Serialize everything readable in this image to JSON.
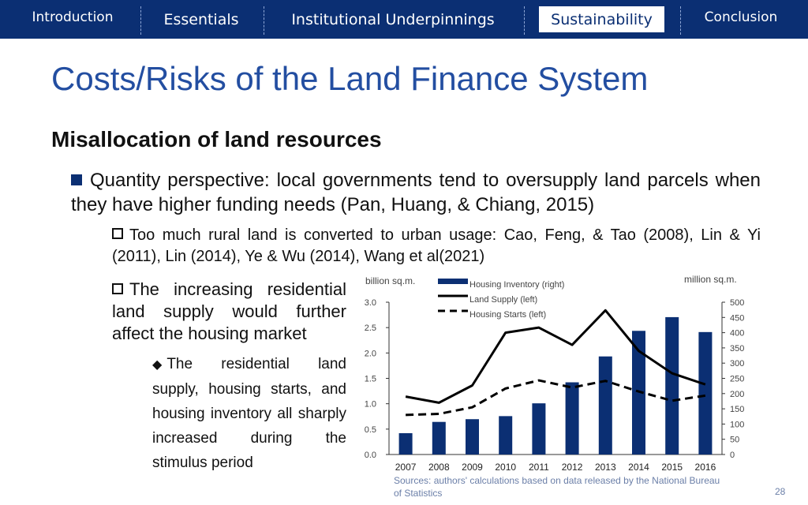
{
  "nav": {
    "items": [
      {
        "label": "Introduction"
      },
      {
        "label": "Essentials"
      },
      {
        "label": "Institutional Underpinnings"
      },
      {
        "label": "Sustainability"
      },
      {
        "label": "Conclusion"
      }
    ],
    "active": "Sustainability",
    "colors": {
      "bar": "#0b2f73",
      "active_bg": "#ffffff"
    }
  },
  "slide": {
    "title": "Costs/Risks of the Land Finance System",
    "subtitle": "Misallocation of land resources",
    "bullet1": "Quantity perspective: local governments tend to oversupply land parcels when they have higher funding needs (Pan, Huang, & Chiang, 2015)",
    "bullet2": "Too much rural land is converted to urban usage: Cao, Feng, & Tao (2008), Lin & Yi (2011), Lin (2014), Ye & Wu (2014), Wang et al(2021)",
    "bullet3": "The increasing residential land supply would further affect the housing market",
    "bullet4": "The residential land supply, housing starts, and housing inventory all sharply increased during the stimulus period",
    "source": "Sources: authors' calculations based on data released by the National Bureau of Statistics",
    "page_number": "28"
  },
  "chart_data": {
    "type": "bar",
    "categories": [
      "2007",
      "2008",
      "2009",
      "2010",
      "2011",
      "2012",
      "2013",
      "2014",
      "2015",
      "2016"
    ],
    "left_axis": {
      "label": "billion sq.m.",
      "ylim": [
        0,
        3.0
      ],
      "ticks": [
        "0.0",
        "0.5",
        "1.0",
        "1.5",
        "2.0",
        "2.5",
        "3.0"
      ]
    },
    "right_axis": {
      "label": "million sq.m.",
      "ylim": [
        0,
        500
      ],
      "ticks": [
        "0",
        "50",
        "100",
        "150",
        "200",
        "250",
        "300",
        "350",
        "400",
        "450",
        "500"
      ]
    },
    "series": [
      {
        "name": "Housing Inventory (right)",
        "type": "bar",
        "axis": "right",
        "color": "#0b2f73",
        "values": [
          70,
          107,
          116,
          126,
          168,
          237,
          322,
          406,
          451,
          402
        ]
      },
      {
        "name": "Land Supply (left)",
        "type": "line",
        "axis": "left",
        "style": "solid",
        "values": [
          1.14,
          1.02,
          1.36,
          2.4,
          2.5,
          2.16,
          2.84,
          2.04,
          1.6,
          1.38
        ]
      },
      {
        "name": "Housing Starts (left)",
        "type": "line",
        "axis": "left",
        "style": "dashed",
        "values": [
          0.78,
          0.8,
          0.93,
          1.3,
          1.46,
          1.32,
          1.45,
          1.24,
          1.06,
          1.16
        ]
      }
    ],
    "legend": "top-center",
    "grid": false
  }
}
